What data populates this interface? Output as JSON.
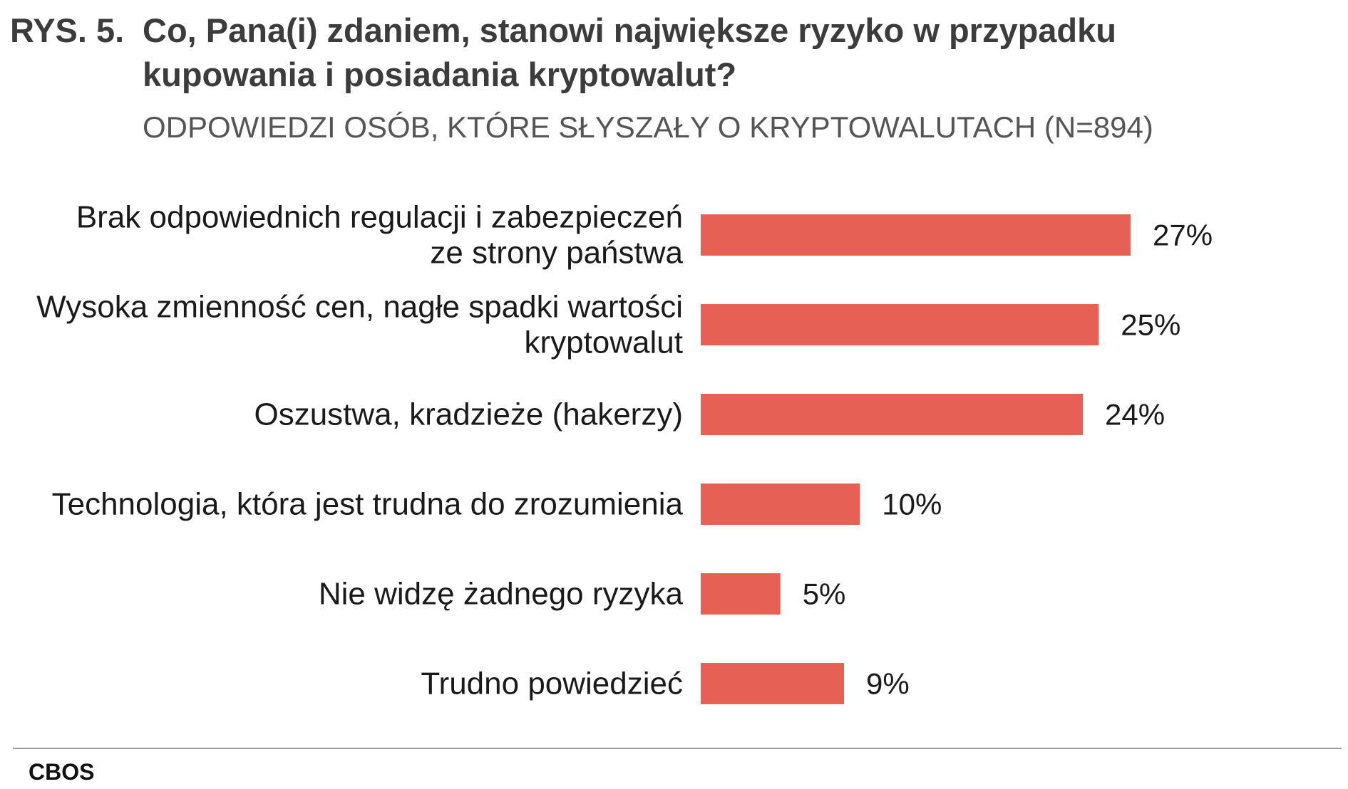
{
  "title": {
    "prefix": "RYS. 5.",
    "line1": "Co, Pana(i) zdaniem, stanowi największe ryzyko w przypadku",
    "line2": "kupowania i posiadania kryptowalut?"
  },
  "subtitle": "ODPOWIEDZI OSÓB, KTÓRE SŁYSZAŁY O KRYPTOWALUTACH (N=894)",
  "source": "CBOS",
  "chart_data": {
    "type": "bar",
    "orientation": "horizontal",
    "title": "Co, Pana(i) zdaniem, stanowi największe ryzyko w przypadku kupowania i posiadania kryptowalut?",
    "subtitle": "ODPOWIEDZI OSÓB, KTÓRE SŁYSZAŁY O KRYPTOWALUTACH (N=894)",
    "categories": [
      [
        "Brak odpowiednich regulacji i zabezpieczeń",
        "ze strony państwa"
      ],
      [
        "Wysoka zmienność cen, nagłe spadki wartości",
        "kryptowalut"
      ],
      [
        "Oszustwa, kradzieże (hakerzy)"
      ],
      [
        "Technologia, która jest trudna do zrozumienia"
      ],
      [
        "Nie widzę żadnego ryzyka"
      ],
      [
        "Trudno powiedzieć"
      ]
    ],
    "values": [
      27,
      25,
      24,
      10,
      5,
      9
    ],
    "value_labels": [
      "27%",
      "25%",
      "24%",
      "10%",
      "5%",
      "9%"
    ],
    "unit": "%",
    "xlim": [
      0,
      27
    ],
    "grid": false,
    "legend": "none",
    "bar_color": "#e66055"
  }
}
